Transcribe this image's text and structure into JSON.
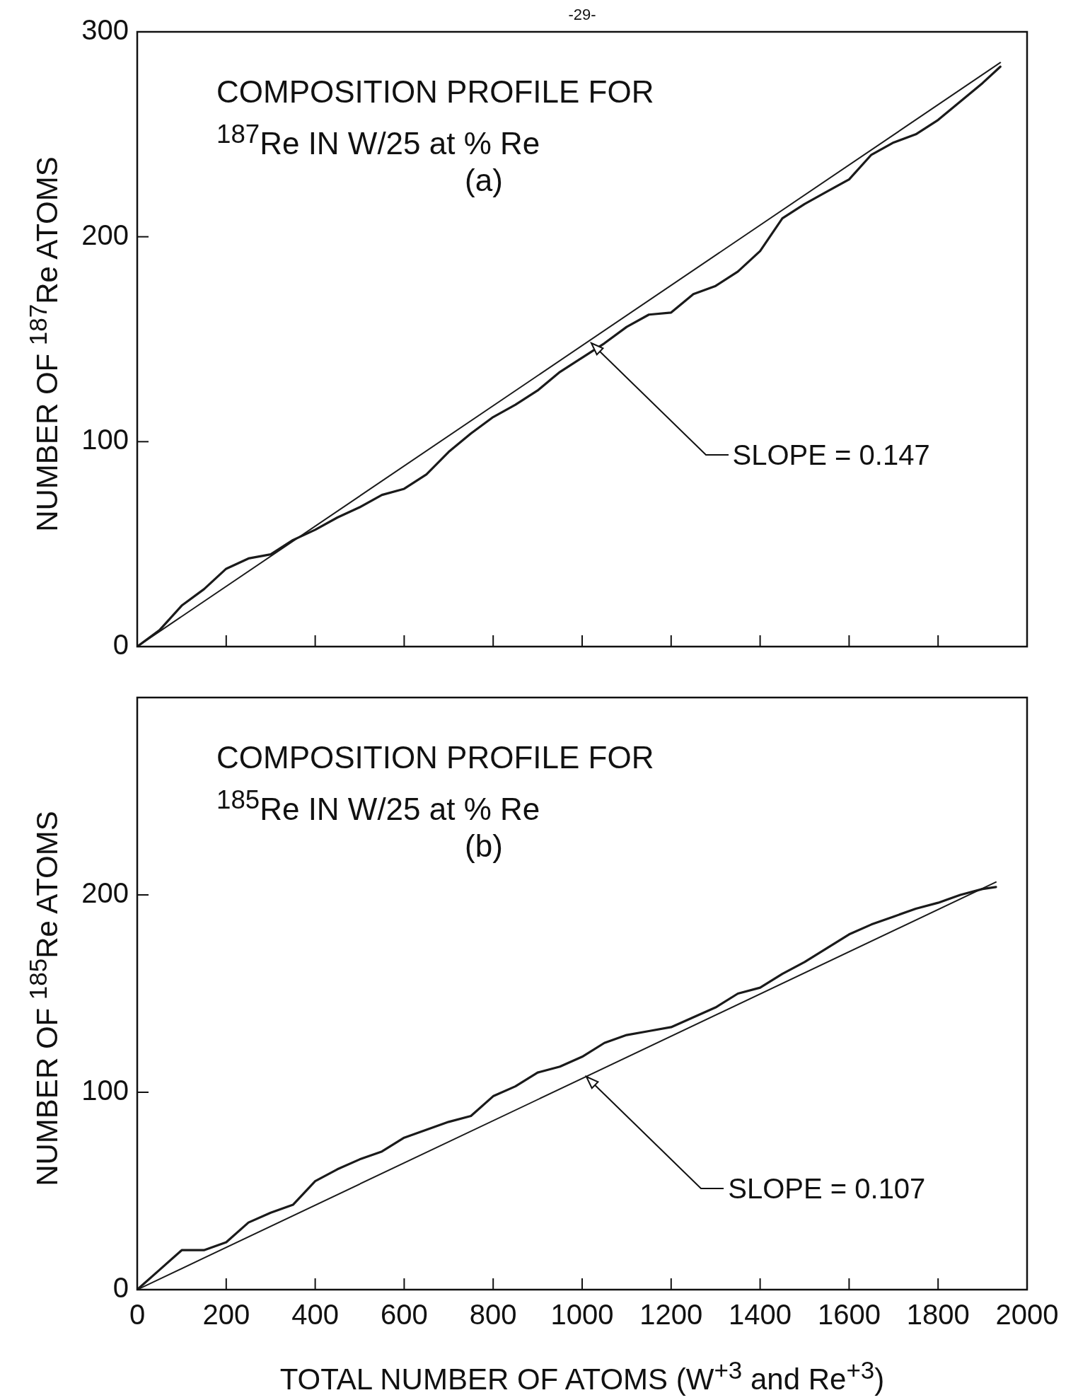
{
  "chart_data": [
    {
      "type": "line",
      "title": "COMPOSITION PROFILE FOR $^{187}$Re IN W/25 at % Re",
      "subtitle": "(a)",
      "ylabel": "NUMBER OF $^{187}$Re ATOMS",
      "xlim": [
        0,
        2000
      ],
      "ylim": [
        0,
        300
      ],
      "xticks": [
        0,
        200,
        400,
        600,
        800,
        1000,
        1200,
        1400,
        1600,
        1800,
        2000
      ],
      "yticks": [
        0,
        100,
        200,
        300
      ],
      "tick_labels": "y",
      "grid": false,
      "marker": "none",
      "series": [
        {
          "color": "#1a1a1a",
          "x": [
            0,
            50,
            100,
            150,
            200,
            250,
            300,
            350,
            400,
            450,
            500,
            550,
            600,
            650,
            700,
            750,
            800,
            850,
            900,
            950,
            1000,
            1050,
            1100,
            1150,
            1200,
            1250,
            1300,
            1350,
            1400,
            1450,
            1500,
            1550,
            1600,
            1650,
            1700,
            1750,
            1800,
            1850,
            1900,
            1940
          ],
          "values": [
            0,
            8,
            20,
            28,
            38,
            43,
            45,
            52,
            57,
            63,
            68,
            74,
            77,
            84,
            95,
            104,
            112,
            118,
            125,
            134,
            141,
            148,
            156,
            162,
            163,
            172,
            176,
            183,
            193,
            209,
            216,
            222,
            228,
            240,
            246,
            250,
            257,
            266,
            275,
            283
          ]
        },
        {
          "type": "line",
          "color": "#1a1a1a",
          "x": [
            0,
            1940
          ],
          "values": [
            0,
            285
          ]
        }
      ],
      "annotations": [
        "-29-",
        {
          "text": "SLOPE = 0.147",
          "x": 1020,
          "y": 148
        }
      ]
    },
    {
      "type": "line",
      "title": "COMPOSITION PROFILE FOR $^{185}$Re IN W/25 at % Re",
      "subtitle": "(b)",
      "xlabel": "TOTAL NUMBER OF ATOMS (W$^{+3}$ and Re$^{+3}$)",
      "ylabel": "NUMBER OF $^{185}$Re ATOMS",
      "xlim": [
        0,
        2000
      ],
      "ylim": [
        0,
        300
      ],
      "xticks": [
        0,
        200,
        400,
        600,
        800,
        1000,
        1200,
        1400,
        1600,
        1800,
        2000
      ],
      "yticks": [
        0,
        100,
        200
      ],
      "grid": false,
      "marker": "none",
      "series": [
        {
          "color": "#1a1a1a",
          "x": [
            0,
            50,
            100,
            150,
            200,
            250,
            300,
            350,
            400,
            450,
            500,
            550,
            600,
            650,
            700,
            750,
            800,
            850,
            900,
            950,
            1000,
            1050,
            1100,
            1150,
            1200,
            1250,
            1300,
            1350,
            1400,
            1450,
            1500,
            1550,
            1600,
            1650,
            1700,
            1750,
            1800,
            1850,
            1900,
            1930
          ],
          "values": [
            0,
            10,
            20,
            20,
            24,
            34,
            39,
            43,
            55,
            61,
            66,
            70,
            77,
            81,
            85,
            88,
            98,
            103,
            110,
            113,
            118,
            125,
            129,
            131,
            133,
            138,
            143,
            150,
            153,
            160,
            166,
            173,
            180,
            185,
            189,
            193,
            196,
            200,
            203,
            204
          ]
        },
        {
          "type": "line",
          "color": "#1a1a1a",
          "x": [
            0,
            1930
          ],
          "values": [
            0,
            206.5
          ]
        }
      ],
      "annotations": [
        {
          "text": "SLOPE = 0.107",
          "x": 1010,
          "y": 108
        }
      ]
    }
  ]
}
